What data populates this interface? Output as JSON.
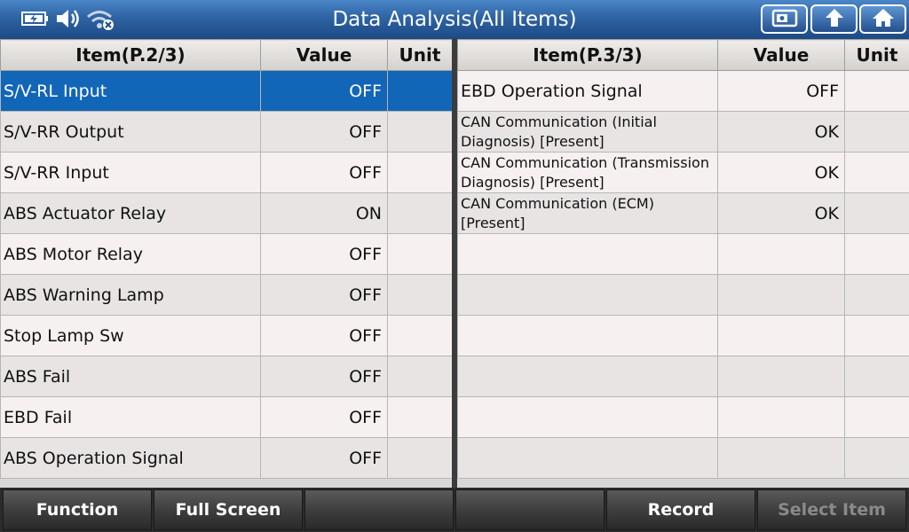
{
  "window": {
    "title": "Data Analysis(All Items)",
    "status_icons": [
      "battery-charging-icon",
      "speaker-icon",
      "wifi-off-icon"
    ],
    "nav_buttons": [
      "screenshot-icon",
      "back-up-icon",
      "home-icon"
    ]
  },
  "left_table": {
    "headers": {
      "item": "Item(P.2/3)",
      "value": "Value",
      "unit": "Unit"
    },
    "rows": [
      {
        "item": "S/V-RL Input",
        "value": "OFF",
        "unit": "",
        "selected": true
      },
      {
        "item": "S/V-RR Output",
        "value": "OFF",
        "unit": ""
      },
      {
        "item": "S/V-RR Input",
        "value": "OFF",
        "unit": ""
      },
      {
        "item": "ABS Actuator Relay",
        "value": "ON",
        "unit": ""
      },
      {
        "item": "ABS Motor Relay",
        "value": "OFF",
        "unit": ""
      },
      {
        "item": "ABS Warning Lamp",
        "value": "OFF",
        "unit": ""
      },
      {
        "item": "Stop Lamp Sw",
        "value": "OFF",
        "unit": ""
      },
      {
        "item": "ABS Fail",
        "value": "OFF",
        "unit": ""
      },
      {
        "item": "EBD Fail",
        "value": "OFF",
        "unit": ""
      },
      {
        "item": "ABS Operation Signal",
        "value": "OFF",
        "unit": ""
      }
    ]
  },
  "right_table": {
    "headers": {
      "item": "Item(P.3/3)",
      "value": "Value",
      "unit": "Unit"
    },
    "rows": [
      {
        "item": "EBD Operation Signal",
        "value": "OFF",
        "unit": ""
      },
      {
        "item": "CAN Communication (Initial Diagnosis) [Present]",
        "value": "OK",
        "unit": ""
      },
      {
        "item": "CAN Communication (Transmission Diagnosis) [Present]",
        "value": "OK",
        "unit": ""
      },
      {
        "item": "CAN Communication (ECM) [Present]",
        "value": "OK",
        "unit": ""
      },
      {
        "item": "",
        "value": "",
        "unit": ""
      },
      {
        "item": "",
        "value": "",
        "unit": ""
      },
      {
        "item": "",
        "value": "",
        "unit": ""
      },
      {
        "item": "",
        "value": "",
        "unit": ""
      },
      {
        "item": "",
        "value": "",
        "unit": ""
      },
      {
        "item": "",
        "value": "",
        "unit": ""
      }
    ]
  },
  "toolbar": {
    "function": "Function",
    "full_screen": "Full Screen",
    "blank1": "",
    "blank2": "",
    "record": "Record",
    "select_item": "Select Item"
  },
  "colors": {
    "titlebar": "#2e63a3",
    "selected_row": "#1266b8",
    "toolbar": "#3c3c3c"
  }
}
